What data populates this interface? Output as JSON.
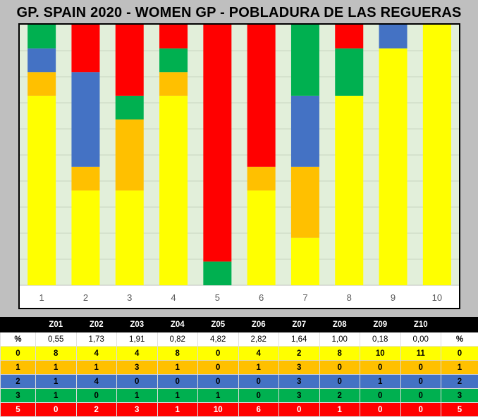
{
  "title": "GP. SPAIN 2020 - WOMEN GP - POBLADURA DE LAS REGUERAS",
  "colors": {
    "0": "#ffff00",
    "1": "#ffc000",
    "2": "#4472c4",
    "3": "#00b050",
    "5": "#ff0000",
    "plot_bg": "#e2efda"
  },
  "chart_data": {
    "type": "bar",
    "stacked": "percent",
    "categories": [
      "1",
      "2",
      "3",
      "4",
      "5",
      "6",
      "7",
      "8",
      "9",
      "10"
    ],
    "series": [
      {
        "name": "0",
        "color": "#ffff00",
        "values": [
          8,
          4,
          4,
          8,
          0,
          4,
          2,
          8,
          10,
          11
        ]
      },
      {
        "name": "1",
        "color": "#ffc000",
        "values": [
          1,
          1,
          3,
          1,
          0,
          1,
          3,
          0,
          0,
          0
        ]
      },
      {
        "name": "2",
        "color": "#4472c4",
        "values": [
          1,
          4,
          0,
          0,
          0,
          0,
          3,
          0,
          1,
          0
        ]
      },
      {
        "name": "3",
        "color": "#00b050",
        "values": [
          1,
          0,
          1,
          1,
          1,
          0,
          3,
          2,
          0,
          0
        ]
      },
      {
        "name": "5",
        "color": "#ff0000",
        "values": [
          0,
          2,
          3,
          1,
          10,
          6,
          0,
          1,
          0,
          0
        ]
      }
    ],
    "ylim": [
      0,
      100
    ],
    "grid": true,
    "legend": "none"
  },
  "table": {
    "zones": [
      "Z01",
      "Z02",
      "Z03",
      "Z04",
      "Z05",
      "Z06",
      "Z07",
      "Z08",
      "Z09",
      "Z10"
    ],
    "pct_label": "%",
    "pct_values": [
      "0,55",
      "1,73",
      "1,91",
      "0,82",
      "4,82",
      "2,82",
      "1,64",
      "1,00",
      "0,18",
      "0,00"
    ],
    "rows": [
      {
        "label": "0",
        "color": "#ffff00",
        "text": "#000000",
        "values": [
          "8",
          "4",
          "4",
          "8",
          "0",
          "4",
          "2",
          "8",
          "10",
          "11"
        ]
      },
      {
        "label": "1",
        "color": "#ffc000",
        "text": "#000000",
        "values": [
          "1",
          "1",
          "3",
          "1",
          "0",
          "1",
          "3",
          "0",
          "0",
          "0"
        ]
      },
      {
        "label": "2",
        "color": "#4472c4",
        "text": "#000000",
        "values": [
          "1",
          "4",
          "0",
          "0",
          "0",
          "0",
          "3",
          "0",
          "1",
          "0"
        ]
      },
      {
        "label": "3",
        "color": "#00b050",
        "text": "#000000",
        "values": [
          "1",
          "0",
          "1",
          "1",
          "1",
          "0",
          "3",
          "2",
          "0",
          "0"
        ]
      },
      {
        "label": "5",
        "color": "#ff0000",
        "text": "#ffffff",
        "values": [
          "0",
          "2",
          "3",
          "1",
          "10",
          "6",
          "0",
          "1",
          "0",
          "0"
        ]
      }
    ]
  }
}
